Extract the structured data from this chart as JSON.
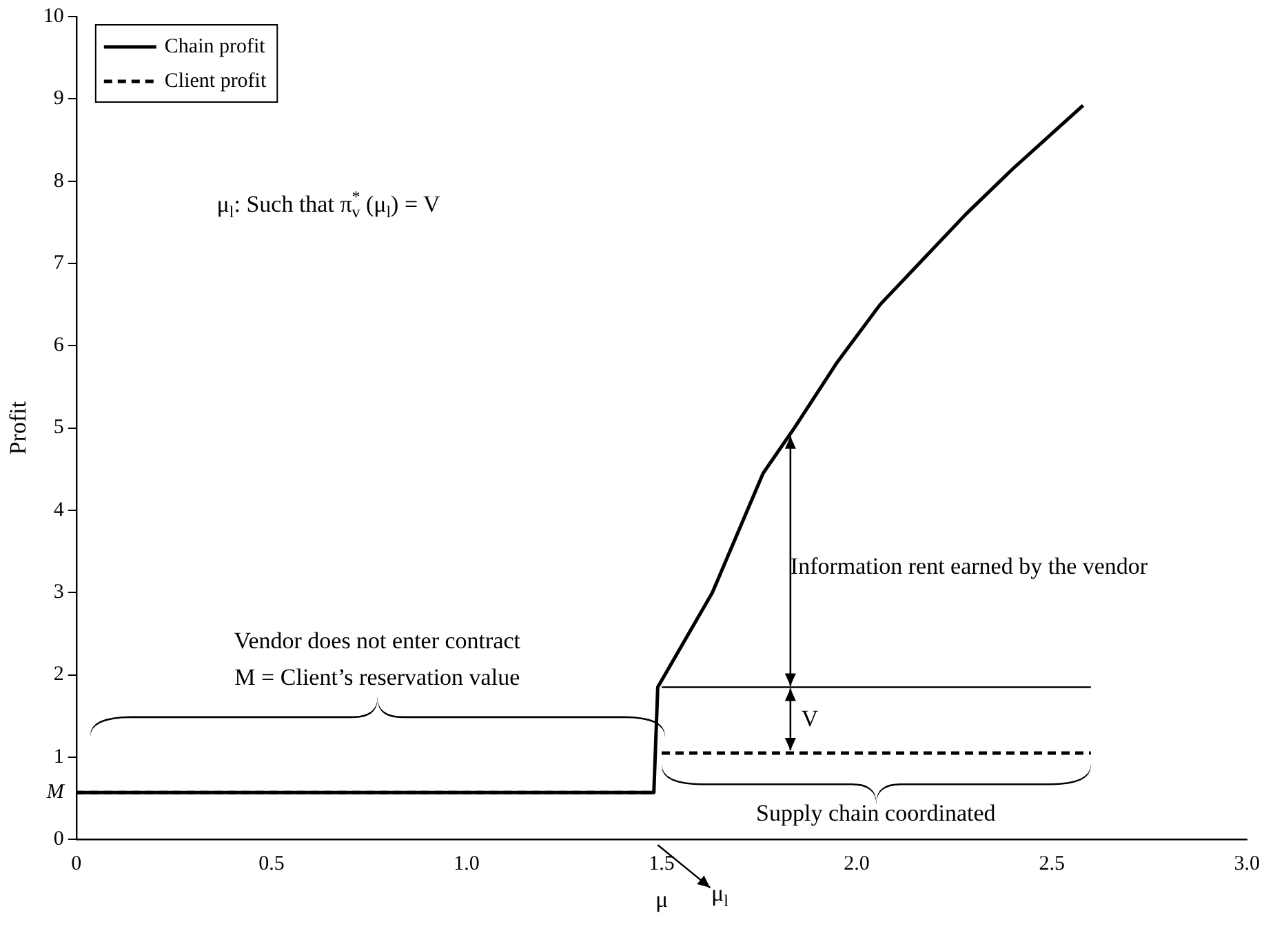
{
  "chart_data": {
    "type": "line",
    "xlabel": "μ",
    "ylabel": "Profit",
    "xlim": [
      0,
      3
    ],
    "xticks": [
      0,
      0.5,
      {
        "value": 1,
        "label": "1.0"
      },
      1.5,
      {
        "value": 2,
        "label": "2.0"
      },
      2.5,
      {
        "value": 3,
        "label": "3.0"
      }
    ],
    "ylim": [
      0,
      10
    ],
    "yticks": [
      0,
      {
        "value": 0.57,
        "label": "M"
      },
      1,
      2,
      3,
      4,
      5,
      6,
      7,
      8,
      9,
      10
    ],
    "grid": false,
    "legend": "top left",
    "marker": "none",
    "series": [
      {
        "name": "Chain profit",
        "color": "#000000",
        "line_style": "solid",
        "x": [
          0,
          1.48,
          1.49,
          1.63,
          1.76,
          1.84,
          1.95,
          2.06,
          2.17,
          2.28,
          2.4,
          2.58
        ],
        "values": [
          0.57,
          0.57,
          1.85,
          3.0,
          4.45,
          5.0,
          5.8,
          6.5,
          7.05,
          7.6,
          8.15,
          8.92
        ]
      },
      {
        "name": "Client profit",
        "color": "#000000",
        "line_style": "dashed",
        "x": [
          0,
          1.48,
          1.49,
          1.5,
          2.6
        ],
        "values": [
          0.57,
          0.57,
          null,
          1.05,
          1.05
        ]
      },
      {
        "color": "#000000",
        "line_style": "solid",
        "x": [
          1.5,
          2.6
        ],
        "values": [
          1.85,
          1.85
        ]
      }
    ],
    "annotations": [
      "μ$_{l}$: Such that π$^{*}$$_{v}$ (μ$_{l}$) = V",
      "Information rent earned by the vendor",
      {
        "text": "V",
        "x": 1.83,
        "y": 1.85
      },
      "Vendor does not enter contract",
      "M = Client’s reservation value",
      "Supply chain coordinated",
      "μ$_{l}$"
    ]
  }
}
